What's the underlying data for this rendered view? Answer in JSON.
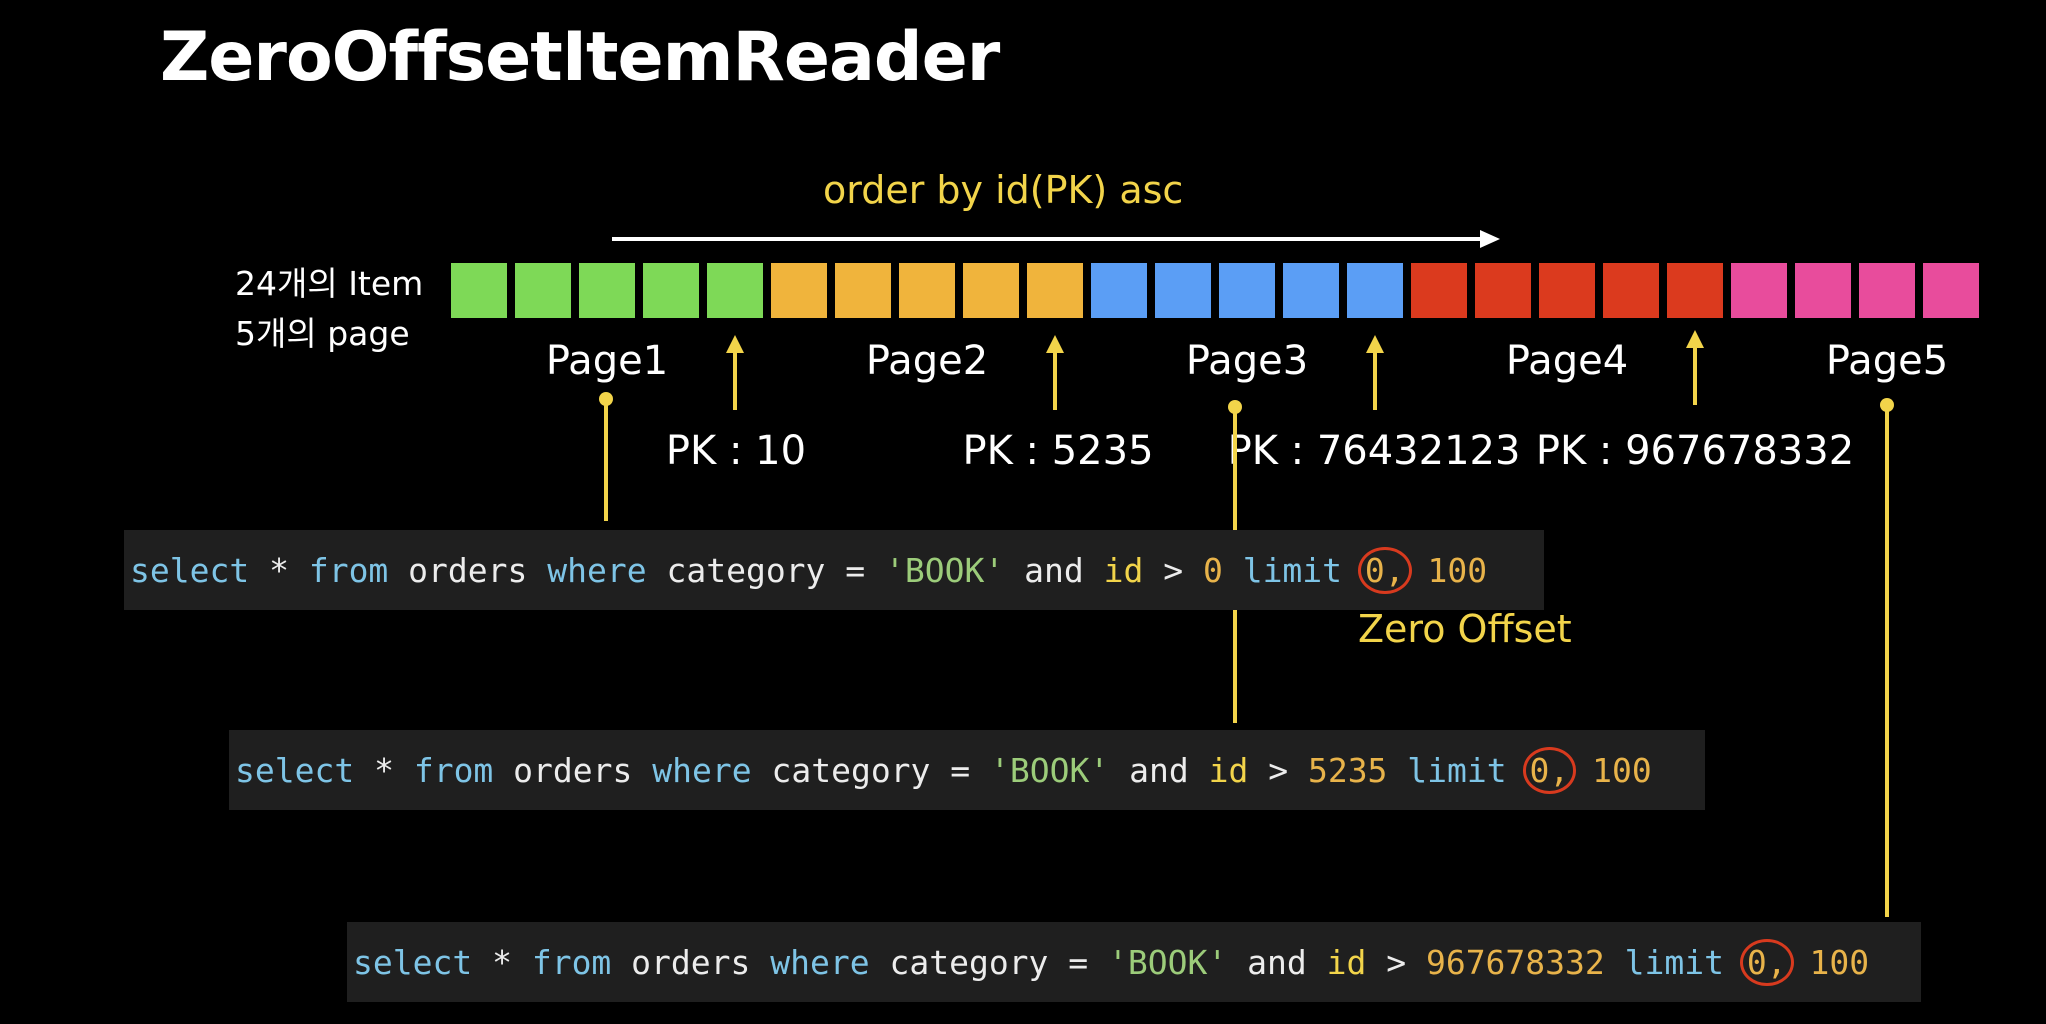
{
  "title": "ZeroOffsetItemReader",
  "order_label": "order by id(PK) asc",
  "side_labels": {
    "items": "24개의 Item",
    "pages": "5개의 page"
  },
  "colors": {
    "page1": "#7ed957",
    "page2": "#f0b43c",
    "page3": "#5b9ef5",
    "page4": "#db3a1e",
    "page5": "#e84c9c",
    "accent": "#f2d44a"
  },
  "item_count": 24,
  "pages": [
    {
      "label": "Page1",
      "pk": "PK : 10",
      "color": "#7ed957",
      "items": 5
    },
    {
      "label": "Page2",
      "pk": "PK : 5235",
      "color": "#f0b43c",
      "items": 5
    },
    {
      "label": "Page3",
      "pk": "PK : 76432123",
      "color": "#5b9ef5",
      "items": 5
    },
    {
      "label": "Page4",
      "pk": "PK : 967678332",
      "color": "#db3a1e",
      "items": 5
    },
    {
      "label": "Page5",
      "pk": "",
      "color": "#e84c9c",
      "items": 4
    }
  ],
  "queries": [
    {
      "select": "select",
      "star": " * ",
      "from": "from",
      "table": " orders ",
      "where": "where",
      "col": " category = ",
      "str": "'BOOK'",
      "and": " and ",
      "id": "id",
      "gt": " > ",
      "value": "0",
      "limit": " limit ",
      "offset": "0,",
      "size": " 100"
    },
    {
      "select": "select",
      "star": " * ",
      "from": "from",
      "table": " orders ",
      "where": "where",
      "col": " category = ",
      "str": "'BOOK'",
      "and": " and ",
      "id": "id",
      "gt": " > ",
      "value": "5235",
      "limit": " limit ",
      "offset": "0,",
      "size": " 100"
    },
    {
      "select": "select",
      "star": " * ",
      "from": "from",
      "table": " orders ",
      "where": "where",
      "col": " category = ",
      "str": "'BOOK'",
      "and": " and ",
      "id": "id",
      "gt": " > ",
      "value": "967678332",
      "limit": " limit ",
      "offset": "0,",
      "size": " 100"
    }
  ],
  "zero_offset_label": "Zero Offset"
}
